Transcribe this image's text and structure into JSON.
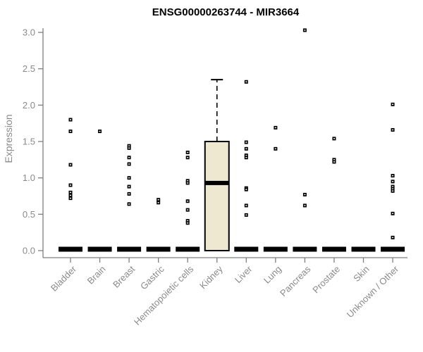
{
  "title": "ENSG00000263744 - MIR3664",
  "chart_data": {
    "type": "boxplot",
    "title": "ENSG00000263744 - MIR3664",
    "xlabel": "",
    "ylabel": "Expression",
    "ylim": [
      0,
      3.05
    ],
    "yticks": [
      0.0,
      0.5,
      1.0,
      1.5,
      2.0,
      2.5,
      3.0
    ],
    "grid": false,
    "legend": "none",
    "categories": [
      "Bladder",
      "Brain",
      "Breast",
      "Gastric",
      "Hematopoietic cells",
      "Kidney",
      "Liver",
      "Lung",
      "Pancreas",
      "Prostate",
      "Skin",
      "Unknown / Other"
    ],
    "boxes": [
      {
        "category": "Bladder",
        "q1": 0,
        "median": 0,
        "q3": 0,
        "whisker_low": 0,
        "whisker_high": 0,
        "outliers": [
          1.8,
          1.64,
          1.18,
          0.9,
          0.8,
          0.76,
          0.72
        ]
      },
      {
        "category": "Brain",
        "q1": 0,
        "median": 0,
        "q3": 0,
        "whisker_low": 0,
        "whisker_high": 0,
        "outliers": [
          1.64
        ]
      },
      {
        "category": "Breast",
        "q1": 0,
        "median": 0,
        "q3": 0,
        "whisker_low": 0,
        "whisker_high": 0,
        "outliers": [
          1.44,
          1.41,
          1.28,
          1.19,
          1.0,
          0.88,
          0.78,
          0.64
        ]
      },
      {
        "category": "Gastric",
        "q1": 0,
        "median": 0,
        "q3": 0,
        "whisker_low": 0,
        "whisker_high": 0,
        "outliers": [
          0.7,
          0.66
        ]
      },
      {
        "category": "Hematopoietic cells",
        "q1": 0,
        "median": 0,
        "q3": 0,
        "whisker_low": 0,
        "whisker_high": 0,
        "outliers": [
          1.35,
          1.28,
          0.96,
          0.93,
          0.68,
          0.56,
          0.41,
          0.38
        ]
      },
      {
        "category": "Kidney",
        "q1": 0,
        "median": 0.93,
        "q3": 1.5,
        "whisker_low": 0,
        "whisker_high": 2.35,
        "outliers": []
      },
      {
        "category": "Liver",
        "q1": 0,
        "median": 0,
        "q3": 0,
        "whisker_low": 0,
        "whisker_high": 0,
        "outliers": [
          2.32,
          1.49,
          1.4,
          1.31,
          1.28,
          0.86,
          0.84,
          0.62,
          0.49
        ]
      },
      {
        "category": "Lung",
        "q1": 0,
        "median": 0,
        "q3": 0,
        "whisker_low": 0,
        "whisker_high": 0,
        "outliers": [
          1.69,
          1.4
        ]
      },
      {
        "category": "Pancreas",
        "q1": 0,
        "median": 0,
        "q3": 0,
        "whisker_low": 0,
        "whisker_high": 0,
        "outliers": [
          3.03,
          0.77,
          0.62
        ]
      },
      {
        "category": "Prostate",
        "q1": 0,
        "median": 0,
        "q3": 0,
        "whisker_low": 0,
        "whisker_high": 0,
        "outliers": [
          1.54,
          1.25,
          1.22
        ]
      },
      {
        "category": "Skin",
        "q1": 0,
        "median": 0,
        "q3": 0,
        "whisker_low": 0,
        "whisker_high": 0,
        "outliers": []
      },
      {
        "category": "Unknown / Other",
        "q1": 0,
        "median": 0,
        "q3": 0,
        "whisker_low": 0,
        "whisker_high": 0,
        "outliers": [
          2.01,
          1.66,
          1.03,
          0.95,
          0.88,
          0.85,
          0.82,
          0.51,
          0.18
        ]
      }
    ],
    "colors": {
      "box_fill": "#EDE8CF",
      "box_stroke": "#000000",
      "median": "#000000",
      "whisker": "#000000",
      "outlier": "#000000",
      "axis": "#7F7F7F",
      "tick_label": "#8A8A8A",
      "title": "#000000"
    }
  }
}
